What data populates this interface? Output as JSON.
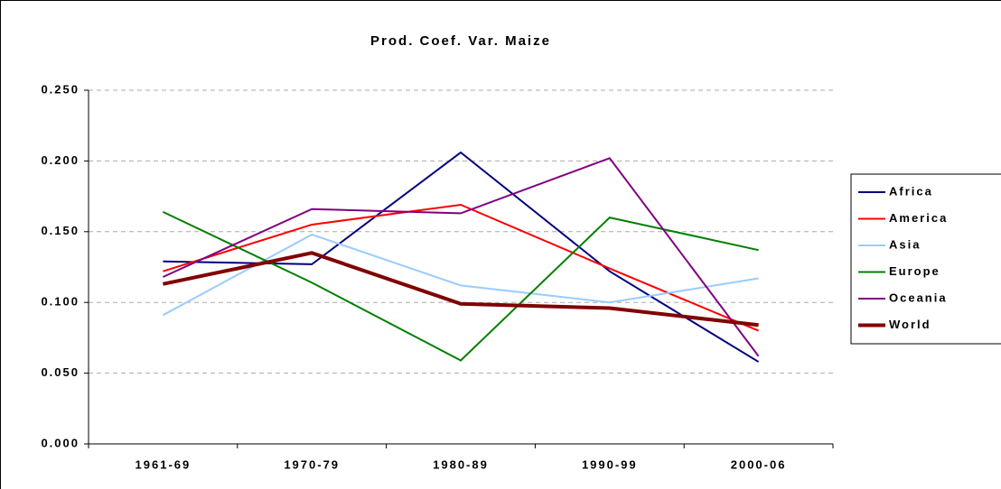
{
  "chart_data": {
    "type": "line",
    "title": "Prod. Coef. Var. Maize",
    "categories": [
      "1961-69",
      "1970-79",
      "1980-89",
      "1990-99",
      "2000-06"
    ],
    "series": [
      {
        "name": "Africa",
        "color": "#000080",
        "values": [
          0.129,
          0.127,
          0.206,
          0.122,
          0.058
        ]
      },
      {
        "name": "America",
        "color": "#ff0000",
        "values": [
          0.122,
          0.155,
          0.169,
          0.124,
          0.08
        ]
      },
      {
        "name": "Asia",
        "color": "#99ccff",
        "values": [
          0.091,
          0.148,
          0.112,
          0.1,
          0.117
        ]
      },
      {
        "name": "Europe",
        "color": "#008000",
        "values": [
          0.164,
          0.114,
          0.059,
          0.16,
          0.137
        ]
      },
      {
        "name": "Oceania",
        "color": "#800080",
        "values": [
          0.118,
          0.166,
          0.163,
          0.202,
          0.062
        ]
      },
      {
        "name": "World",
        "color": "#800000",
        "values": [
          0.113,
          0.135,
          0.099,
          0.096,
          0.084
        ]
      }
    ],
    "ylim": [
      0,
      0.25
    ],
    "yticks": [
      {
        "value": 0,
        "label": "0.000"
      },
      {
        "value": 0.05,
        "label": "0.050"
      },
      {
        "value": 0.1,
        "label": "0.100"
      },
      {
        "value": 0.15,
        "label": "0.150"
      },
      {
        "value": 0.2,
        "label": "0.200"
      },
      {
        "value": 0.25,
        "label": "0.250"
      }
    ],
    "grid": true,
    "legend": "right"
  }
}
